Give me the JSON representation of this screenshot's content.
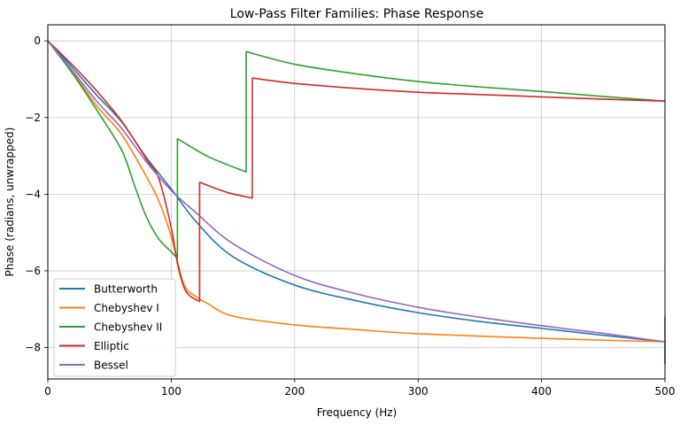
{
  "chart_data": {
    "type": "line",
    "title": "Low-Pass Filter Families: Phase Response",
    "xlabel": "Frequency (Hz)",
    "ylabel": "Phase (radians, unwrapped)",
    "xlim": [
      0,
      500
    ],
    "ylim": [
      -8.82,
      0.42
    ],
    "xticks": [
      0,
      100,
      200,
      300,
      400,
      500
    ],
    "xtick_labels": [
      "0",
      "100",
      "200",
      "300",
      "400",
      "500"
    ],
    "yticks": [
      0,
      -2,
      -4,
      -6,
      -8
    ],
    "ytick_labels": [
      "0",
      "−2",
      "−4",
      "−6",
      "−8"
    ],
    "grid": true,
    "legend_position": "lower-left",
    "series": [
      {
        "name": "Butterworth",
        "color": "#1f77b4",
        "x": [
          0,
          20,
          40,
          60,
          80,
          100,
          120,
          150,
          200,
          250,
          300,
          350,
          400,
          450,
          499.5,
          500,
          500
        ],
        "y": [
          0,
          -0.7,
          -1.43,
          -2.12,
          -3.05,
          -3.86,
          -4.71,
          -5.63,
          -6.37,
          -6.78,
          -7.09,
          -7.32,
          -7.5,
          -7.68,
          -7.85,
          -7.85,
          -8.43
        ]
      },
      {
        "name": "Chebyshev I",
        "color": "#ff7f0e",
        "x": [
          0,
          20,
          40,
          60,
          80,
          90,
          100,
          110,
          120,
          130,
          150,
          200,
          250,
          300,
          400,
          500
        ],
        "y": [
          0,
          -0.82,
          -1.71,
          -2.45,
          -3.55,
          -4.18,
          -5.1,
          -6.33,
          -6.67,
          -6.86,
          -7.18,
          -7.41,
          -7.53,
          -7.64,
          -7.76,
          -7.85
        ]
      },
      {
        "name": "Chebyshev II",
        "color": "#2ca02c",
        "x": [
          0,
          20,
          40,
          60,
          70,
          80,
          90,
          100,
          105,
          105,
          130,
          160.7,
          160.7,
          200,
          250,
          300,
          350,
          400,
          450,
          500
        ],
        "y": [
          0,
          -0.85,
          -1.82,
          -2.86,
          -3.75,
          -4.6,
          -5.17,
          -5.5,
          -5.68,
          -2.55,
          -3.02,
          -3.42,
          -0.28,
          -0.61,
          -0.86,
          -1.06,
          -1.2,
          -1.32,
          -1.45,
          -1.57
        ]
      },
      {
        "name": "Elliptic",
        "color": "#d62728",
        "x": [
          0,
          20,
          40,
          60,
          80,
          90,
          100,
          105,
          110,
          115,
          123,
          123,
          145,
          165.7,
          165.7,
          200,
          250,
          300,
          350,
          400,
          450,
          500
        ],
        "y": [
          0,
          -0.63,
          -1.32,
          -2.1,
          -3.09,
          -3.6,
          -4.87,
          -5.8,
          -6.4,
          -6.65,
          -6.8,
          -3.69,
          -3.95,
          -4.1,
          -0.97,
          -1.11,
          -1.24,
          -1.34,
          -1.4,
          -1.46,
          -1.52,
          -1.57
        ]
      },
      {
        "name": "Bessel",
        "color": "#9467bd",
        "x": [
          0,
          20,
          40,
          60,
          80,
          100,
          120,
          150,
          200,
          250,
          300,
          350,
          400,
          450,
          499.5,
          500,
          500
        ],
        "y": [
          0,
          -0.78,
          -1.59,
          -2.29,
          -3.16,
          -3.9,
          -4.48,
          -5.29,
          -6.12,
          -6.6,
          -6.95,
          -7.21,
          -7.43,
          -7.63,
          -7.85,
          -7.85,
          -7.2
        ]
      }
    ]
  }
}
